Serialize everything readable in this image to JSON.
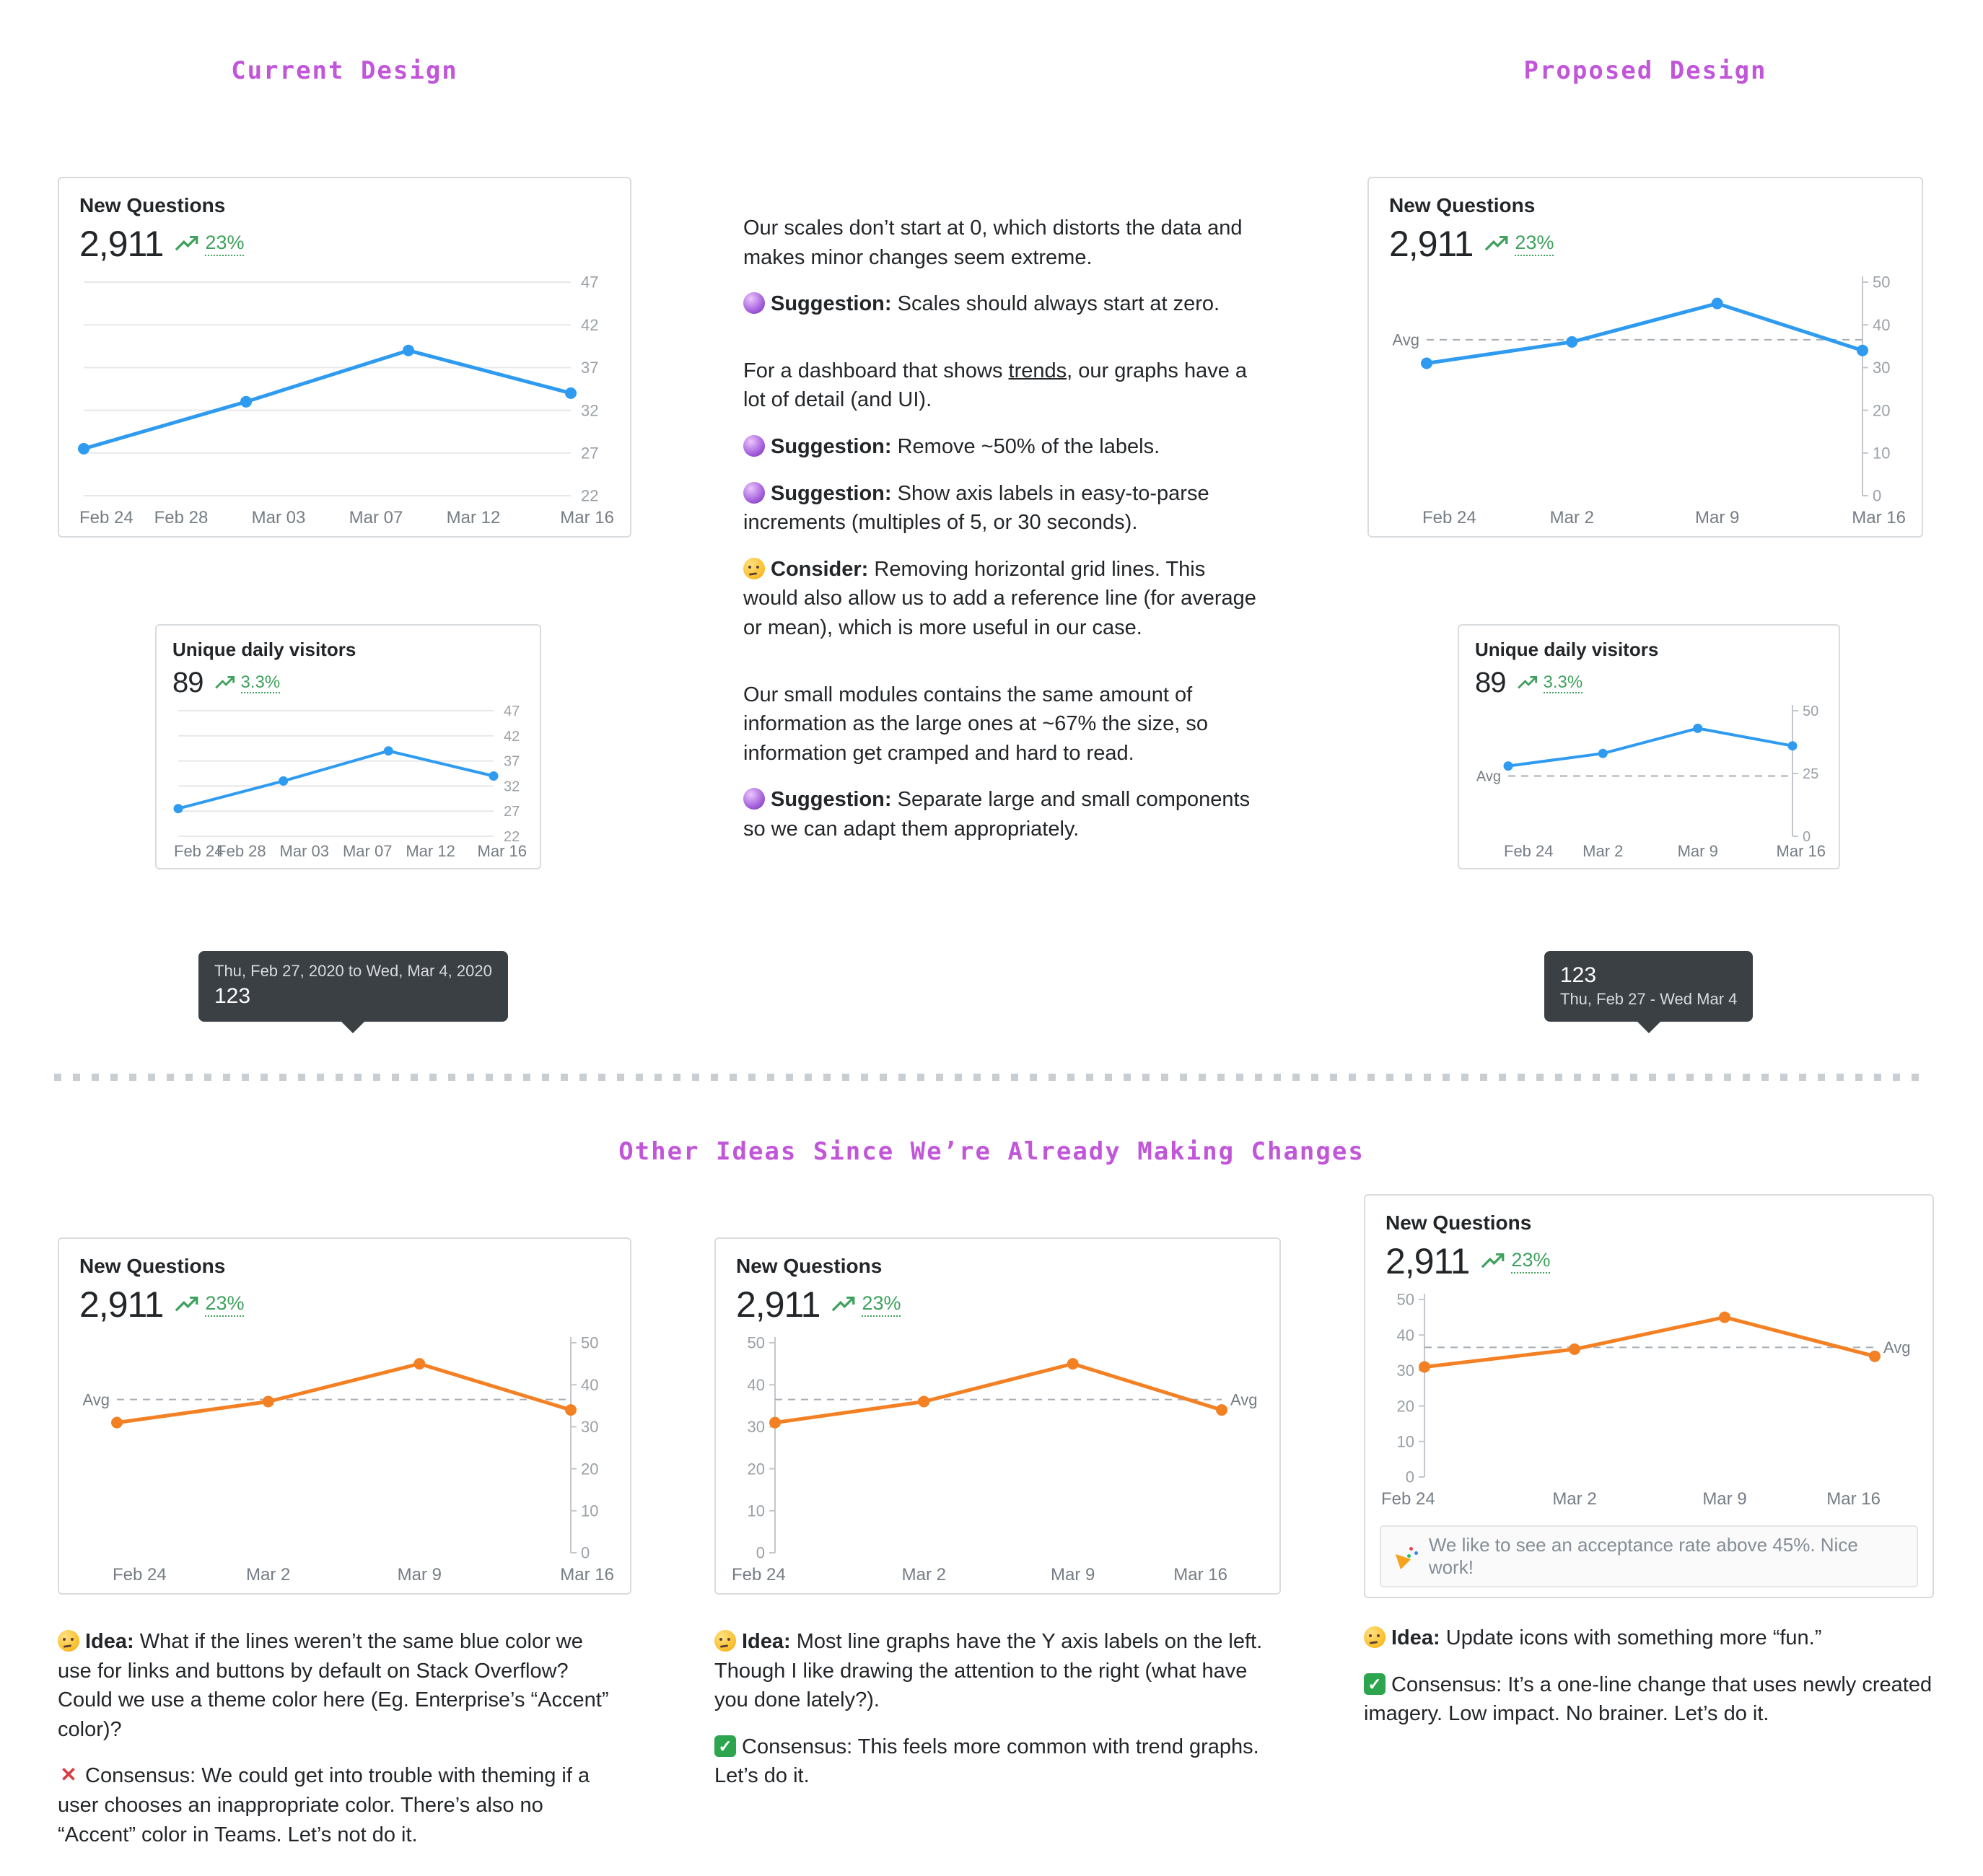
{
  "page": {
    "section_current": "Current Design",
    "section_proposed": "Proposed Design",
    "section_other": "Other Ideas Since We’re Already Making Changes"
  },
  "cards": {
    "current_new_questions": {
      "title": "New Questions",
      "value": "2,911",
      "trend": "23%"
    },
    "current_visitors": {
      "title": "Unique daily visitors",
      "value": "89",
      "trend": "3.3%"
    },
    "proposed_new_questions": {
      "title": "New Questions",
      "value": "2,911",
      "trend": "23%"
    },
    "proposed_visitors": {
      "title": "Unique daily visitors",
      "value": "89",
      "trend": "3.3%"
    },
    "idea_accent": {
      "title": "New Questions",
      "value": "2,911",
      "trend": "23%"
    },
    "idea_left_axis": {
      "title": "New Questions",
      "value": "2,911",
      "trend": "23%"
    },
    "idea_fun_icons": {
      "title": "New Questions",
      "value": "2,911",
      "trend": "23%",
      "banner_icon": "party",
      "banner_text": "We like to see an acceptance rate above 45%. Nice work!"
    }
  },
  "tooltips": {
    "current": {
      "range": "Thu, Feb 27, 2020 to Wed, Mar 4, 2020",
      "value": "123"
    },
    "proposed": {
      "value": "123",
      "range": "Thu, Feb 27 - Wed Mar 4"
    }
  },
  "middle_notes": {
    "p1": {
      "text": "Our scales don’t start at 0, which distorts the data and makes minor changes seem extreme."
    },
    "p2": {
      "icon": "crystal-ball",
      "label": "Suggestion:",
      "text": "Scales should always start at zero."
    },
    "p3": {
      "pre": "For a dashboard that shows ",
      "underlined": "trends",
      "post": ", our graphs have a lot of detail (and UI)."
    },
    "p4": {
      "icon": "crystal-ball",
      "label": "Suggestion:",
      "text": "Remove ~50% of the labels."
    },
    "p5": {
      "icon": "crystal-ball",
      "label": "Suggestion:",
      "text": "Show axis labels in easy-to-parse increments (multiples of 5, or 30 seconds)."
    },
    "p6": {
      "icon": "thinking-face",
      "label": "Consider:",
      "text": "Removing horizontal grid lines. This would also allow us to add a reference line (for average or mean), which is more useful in our case."
    },
    "p7": {
      "text": "Our small modules contains the same amount of information as the large ones at ~67% the size, so information get cramped and hard to read."
    },
    "p8": {
      "icon": "crystal-ball",
      "label": "Suggestion:",
      "text": "Separate large and small components so we can adapt them appropriately."
    }
  },
  "idea_notes": {
    "n1_idea": {
      "icon": "thinking-face",
      "label": "Idea:",
      "text": "What if the lines weren’t the same blue color we use for links and buttons by default on Stack Overflow? Could we use a theme color here (Eg. Enterprise’s “Accent” color)?"
    },
    "n1_consensus": {
      "icon": "x-mark",
      "text": "Consensus: We could get into trouble with theming if a user chooses an inappropriate color. There’s also no “Accent” color in Teams. Let’s not do it."
    },
    "n2_idea": {
      "icon": "thinking-face",
      "label": "Idea:",
      "text": "Most line graphs have the Y axis labels on the left. Though I like drawing the attention to the right (what have you done lately?)."
    },
    "n2_consensus": {
      "icon": "check",
      "text": "Consensus: This feels more common with trend graphs. Let’s do it."
    },
    "n3_idea": {
      "icon": "thinking-face",
      "label": "Idea:",
      "text": "Update icons with something more “fun.”"
    },
    "n3_consensus": {
      "icon": "check",
      "text": "Consensus: It’s a one-line change that uses newly created imagery. Low impact. No brainer. Let’s do it."
    }
  },
  "chart_data": {
    "current_new_questions": {
      "type": "line",
      "title": "New Questions",
      "color": "#2f9bf0",
      "y_min": 22,
      "y_max": 47,
      "y_ticks": [
        47,
        42,
        37,
        32,
        27,
        22
      ],
      "axis_side": "right",
      "gridlines": true,
      "axis_line": false,
      "x_labels": [
        "Feb 24",
        "Feb 28",
        "Mar 03",
        "Mar 07",
        "Mar 12",
        "Mar 16"
      ],
      "values": [
        27.5,
        33,
        39,
        34
      ]
    },
    "current_visitors": {
      "type": "line",
      "title": "Unique daily visitors",
      "color": "#2f9bf0",
      "y_min": 22,
      "y_max": 47,
      "y_ticks": [
        47,
        42,
        37,
        32,
        27,
        22
      ],
      "axis_side": "right",
      "gridlines": true,
      "axis_line": false,
      "x_labels": [
        "Feb 24",
        "Feb 28",
        "Mar 03",
        "Mar 07",
        "Mar 12",
        "Mar 16"
      ],
      "values": [
        27.5,
        33,
        39,
        34
      ]
    },
    "proposed_new_questions": {
      "type": "line",
      "title": "New Questions",
      "color": "#2f9bf0",
      "y_min": 0,
      "y_max": 50,
      "y_ticks": [
        50,
        40,
        30,
        20,
        10,
        0
      ],
      "axis_side": "right",
      "gridlines": false,
      "axis_line": true,
      "avg": 36.5,
      "avg_label": "Avg",
      "avg_label_side": "left",
      "x_labels": [
        "Feb 24",
        "Mar 2",
        "Mar 9",
        "Mar 16"
      ],
      "values": [
        31,
        36,
        45,
        34
      ]
    },
    "proposed_visitors": {
      "type": "line",
      "title": "Unique daily visitors",
      "color": "#2f9bf0",
      "y_min": 0,
      "y_max": 50,
      "y_ticks": [
        50,
        25,
        0
      ],
      "axis_side": "right",
      "gridlines": false,
      "axis_line": true,
      "avg": 24,
      "avg_label": "Avg",
      "avg_label_side": "left",
      "x_labels": [
        "Feb 24",
        "Mar 2",
        "Mar 9",
        "Mar 16"
      ],
      "values": [
        28,
        33,
        43,
        36
      ]
    },
    "idea_accent": {
      "type": "line",
      "title": "New Questions",
      "color": "#f48024",
      "y_min": 0,
      "y_max": 50,
      "y_ticks": [
        50,
        40,
        30,
        20,
        10,
        0
      ],
      "axis_side": "right",
      "gridlines": false,
      "axis_line": true,
      "avg": 36.5,
      "avg_label": "Avg",
      "avg_label_side": "left",
      "x_labels": [
        "Feb 24",
        "Mar 2",
        "Mar 9",
        "Mar 16"
      ],
      "values": [
        31,
        36,
        45,
        34
      ]
    },
    "idea_left_axis": {
      "type": "line",
      "title": "New Questions",
      "color": "#f48024",
      "y_min": 0,
      "y_max": 50,
      "y_ticks": [
        50,
        40,
        30,
        20,
        10,
        0
      ],
      "axis_side": "left",
      "gridlines": false,
      "axis_line": true,
      "avg": 36.5,
      "avg_label": "Avg",
      "avg_label_side": "right",
      "x_labels": [
        "Feb 24",
        "Mar 2",
        "Mar 9",
        "Mar 16"
      ],
      "values": [
        31,
        36,
        45,
        34
      ]
    },
    "idea_fun_icons": {
      "type": "line",
      "title": "New Questions",
      "color": "#f48024",
      "y_min": 0,
      "y_max": 50,
      "y_ticks": [
        50,
        40,
        30,
        20,
        10,
        0
      ],
      "axis_side": "left",
      "gridlines": false,
      "axis_line": true,
      "avg": 36.5,
      "avg_label": "Avg",
      "avg_label_side": "right",
      "x_labels": [
        "Feb 24",
        "Mar 2",
        "Mar 9",
        "Mar 16"
      ],
      "values": [
        31,
        36,
        45,
        34
      ]
    }
  },
  "colors": {
    "accent_purple": "#c156d9",
    "line_blue": "#2f9bf0",
    "line_orange": "#f48024",
    "trend_green": "#3fa15d",
    "tooltip_bg": "#3b4045"
  }
}
